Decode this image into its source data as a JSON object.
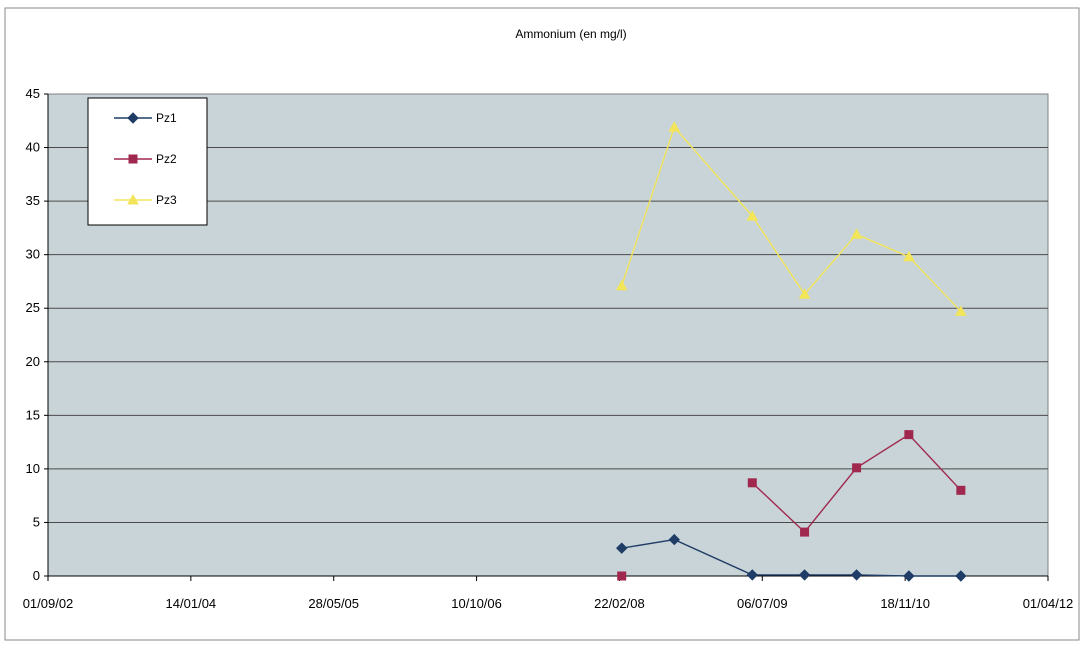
{
  "chart_data": {
    "type": "line",
    "title": "Ammonium (en mg/l)",
    "xlabel": "",
    "ylabel": "",
    "x_axis": {
      "type": "date",
      "min": "2002-09-01",
      "max": "2012-04-01",
      "tick_dates": [
        "2002-09-01",
        "2004-01-14",
        "2005-05-28",
        "2006-10-10",
        "2008-02-22",
        "2009-07-06",
        "2010-11-18",
        "2012-04-01"
      ],
      "tick_labels": [
        "01/09/02",
        "14/01/04",
        "28/05/05",
        "10/10/06",
        "22/02/08",
        "06/07/09",
        "18/11/10",
        "01/04/12"
      ]
    },
    "y_axis": {
      "min": 0,
      "max": 45,
      "ticks": [
        0,
        5,
        10,
        15,
        20,
        25,
        30,
        35,
        40,
        45
      ]
    },
    "grid": {
      "horizontal": true,
      "vertical": false
    },
    "legend_position": "top-left",
    "plot_background": "#c9d4d8",
    "series": [
      {
        "name": "Pz1",
        "color": "#1f3d66",
        "marker": "diamond",
        "points": [
          {
            "x": "2008-03-01",
            "y": 2.6
          },
          {
            "x": "2008-09-01",
            "y": 3.4
          },
          {
            "x": "2009-06-01",
            "y": 0.1
          },
          {
            "x": "2009-12-01",
            "y": 0.1
          },
          {
            "x": "2010-06-01",
            "y": 0.1
          },
          {
            "x": "2010-12-01",
            "y": 0.0
          },
          {
            "x": "2011-06-01",
            "y": 0.0
          }
        ]
      },
      {
        "name": "Pz2",
        "color": "#a0284e",
        "marker": "square",
        "points": [
          {
            "x": "2008-03-01",
            "y": 0.0
          },
          {
            "x": "2008-09-01",
            "y": null
          },
          {
            "x": "2009-06-01",
            "y": 8.7
          },
          {
            "x": "2009-12-01",
            "y": 4.1
          },
          {
            "x": "2010-06-01",
            "y": 10.1
          },
          {
            "x": "2010-12-01",
            "y": 13.2
          },
          {
            "x": "2011-06-01",
            "y": 8.0
          }
        ]
      },
      {
        "name": "Pz3",
        "color": "#f2e55a",
        "marker": "triangle",
        "points": [
          {
            "x": "2008-03-01",
            "y": 27.1
          },
          {
            "x": "2008-09-01",
            "y": 41.9
          },
          {
            "x": "2009-06-01",
            "y": 33.6
          },
          {
            "x": "2009-12-01",
            "y": 26.3
          },
          {
            "x": "2010-06-01",
            "y": 31.9
          },
          {
            "x": "2010-12-01",
            "y": 29.8
          },
          {
            "x": "2011-06-01",
            "y": 24.7
          }
        ]
      }
    ]
  }
}
